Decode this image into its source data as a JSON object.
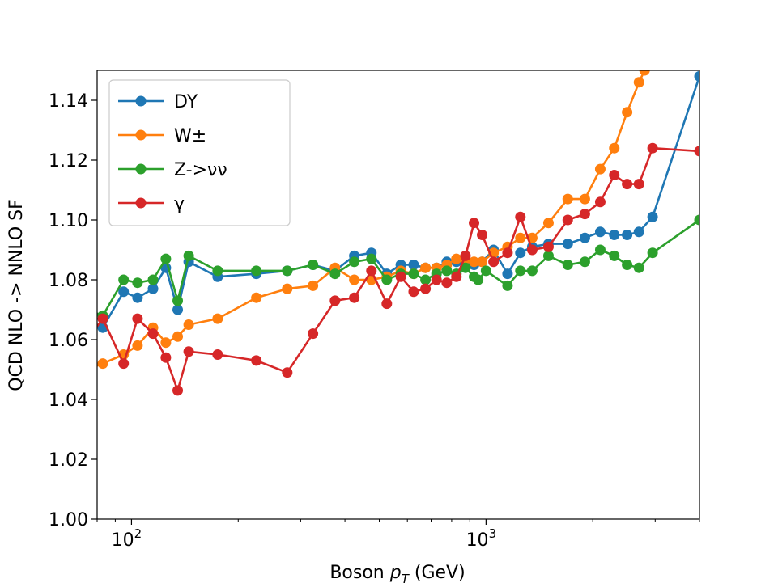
{
  "chart_data": {
    "type": "line",
    "xlabel_main": "Boson ",
    "xlabel_var": "p",
    "xlabel_sub": "T",
    "xlabel_unit": " (GeV)",
    "ylabel": "QCD NLO -> NNLO SF",
    "x_scale": "log",
    "xlim": [
      80,
      4000
    ],
    "ylim": [
      1.0,
      1.15
    ],
    "x_ticks": [
      {
        "value": 100,
        "base": "10",
        "exp": "2"
      },
      {
        "value": 1000,
        "base": "10",
        "exp": "3"
      }
    ],
    "y_ticks": [
      "1.00",
      "1.02",
      "1.04",
      "1.06",
      "1.08",
      "1.10",
      "1.12",
      "1.14"
    ],
    "legend_position": "upper-left",
    "series": [
      {
        "name": "DY",
        "color": "#1f77b4",
        "points": [
          [
            75,
            1.065
          ],
          [
            83,
            1.064
          ],
          [
            95,
            1.076
          ],
          [
            104,
            1.074
          ],
          [
            115,
            1.077
          ],
          [
            125,
            1.084
          ],
          [
            135,
            1.07
          ],
          [
            145,
            1.086
          ],
          [
            175,
            1.081
          ],
          [
            225,
            1.082
          ],
          [
            275,
            1.083
          ],
          [
            325,
            1.085
          ],
          [
            375,
            1.083
          ],
          [
            425,
            1.088
          ],
          [
            475,
            1.089
          ],
          [
            525,
            1.082
          ],
          [
            575,
            1.085
          ],
          [
            625,
            1.085
          ],
          [
            675,
            1.084
          ],
          [
            725,
            1.084
          ],
          [
            775,
            1.086
          ],
          [
            825,
            1.086
          ],
          [
            875,
            1.086
          ],
          [
            925,
            1.085
          ],
          [
            975,
            1.086
          ],
          [
            1050,
            1.09
          ],
          [
            1150,
            1.082
          ],
          [
            1250,
            1.089
          ],
          [
            1350,
            1.091
          ],
          [
            1500,
            1.092
          ],
          [
            1700,
            1.092
          ],
          [
            1900,
            1.094
          ],
          [
            2100,
            1.096
          ],
          [
            2300,
            1.095
          ],
          [
            2500,
            1.095
          ],
          [
            2700,
            1.096
          ],
          [
            2950,
            1.101
          ],
          [
            4000,
            1.148
          ]
        ]
      },
      {
        "name": "W±",
        "color": "#ff7f0e",
        "points": [
          [
            75,
            1.05
          ],
          [
            83,
            1.052
          ],
          [
            95,
            1.055
          ],
          [
            104,
            1.058
          ],
          [
            115,
            1.064
          ],
          [
            125,
            1.059
          ],
          [
            135,
            1.061
          ],
          [
            145,
            1.065
          ],
          [
            175,
            1.067
          ],
          [
            225,
            1.074
          ],
          [
            275,
            1.077
          ],
          [
            325,
            1.078
          ],
          [
            375,
            1.084
          ],
          [
            425,
            1.08
          ],
          [
            475,
            1.08
          ],
          [
            525,
            1.081
          ],
          [
            575,
            1.083
          ],
          [
            625,
            1.082
          ],
          [
            675,
            1.084
          ],
          [
            725,
            1.084
          ],
          [
            775,
            1.085
          ],
          [
            825,
            1.087
          ],
          [
            875,
            1.087
          ],
          [
            925,
            1.086
          ],
          [
            975,
            1.086
          ],
          [
            1050,
            1.089
          ],
          [
            1150,
            1.091
          ],
          [
            1250,
            1.094
          ],
          [
            1350,
            1.094
          ],
          [
            1500,
            1.099
          ],
          [
            1700,
            1.107
          ],
          [
            1900,
            1.107
          ],
          [
            2100,
            1.117
          ],
          [
            2300,
            1.124
          ],
          [
            2500,
            1.136
          ],
          [
            2700,
            1.146
          ],
          [
            2800,
            1.15
          ]
        ]
      },
      {
        "name": "Z->νν",
        "color": "#2ca02c",
        "points": [
          [
            75,
            1.07
          ],
          [
            83,
            1.068
          ],
          [
            95,
            1.08
          ],
          [
            104,
            1.079
          ],
          [
            115,
            1.08
          ],
          [
            125,
            1.087
          ],
          [
            135,
            1.073
          ],
          [
            145,
            1.088
          ],
          [
            175,
            1.083
          ],
          [
            225,
            1.083
          ],
          [
            275,
            1.083
          ],
          [
            325,
            1.085
          ],
          [
            375,
            1.082
          ],
          [
            425,
            1.086
          ],
          [
            475,
            1.087
          ],
          [
            525,
            1.08
          ],
          [
            575,
            1.082
          ],
          [
            625,
            1.082
          ],
          [
            675,
            1.08
          ],
          [
            725,
            1.082
          ],
          [
            775,
            1.083
          ],
          [
            825,
            1.082
          ],
          [
            875,
            1.084
          ],
          [
            925,
            1.081
          ],
          [
            950,
            1.08
          ],
          [
            1000,
            1.083
          ],
          [
            1150,
            1.078
          ],
          [
            1250,
            1.083
          ],
          [
            1350,
            1.083
          ],
          [
            1500,
            1.088
          ],
          [
            1700,
            1.085
          ],
          [
            1900,
            1.086
          ],
          [
            2100,
            1.09
          ],
          [
            2300,
            1.088
          ],
          [
            2500,
            1.085
          ],
          [
            2700,
            1.084
          ],
          [
            2950,
            1.089
          ],
          [
            4000,
            1.1
          ]
        ]
      },
      {
        "name": "γ",
        "color": "#d62728",
        "points": [
          [
            75,
            1.06
          ],
          [
            83,
            1.067
          ],
          [
            95,
            1.052
          ],
          [
            104,
            1.067
          ],
          [
            115,
            1.062
          ],
          [
            125,
            1.054
          ],
          [
            135,
            1.043
          ],
          [
            145,
            1.056
          ],
          [
            175,
            1.055
          ],
          [
            225,
            1.053
          ],
          [
            275,
            1.049
          ],
          [
            325,
            1.062
          ],
          [
            375,
            1.073
          ],
          [
            425,
            1.074
          ],
          [
            475,
            1.083
          ],
          [
            525,
            1.072
          ],
          [
            575,
            1.081
          ],
          [
            625,
            1.076
          ],
          [
            675,
            1.077
          ],
          [
            725,
            1.08
          ],
          [
            775,
            1.079
          ],
          [
            825,
            1.081
          ],
          [
            875,
            1.088
          ],
          [
            925,
            1.099
          ],
          [
            975,
            1.095
          ],
          [
            1050,
            1.086
          ],
          [
            1150,
            1.089
          ],
          [
            1250,
            1.101
          ],
          [
            1350,
            1.09
          ],
          [
            1500,
            1.091
          ],
          [
            1700,
            1.1
          ],
          [
            1900,
            1.102
          ],
          [
            2100,
            1.106
          ],
          [
            2300,
            1.115
          ],
          [
            2500,
            1.112
          ],
          [
            2700,
            1.112
          ],
          [
            2950,
            1.124
          ],
          [
            4000,
            1.123
          ]
        ]
      }
    ]
  }
}
